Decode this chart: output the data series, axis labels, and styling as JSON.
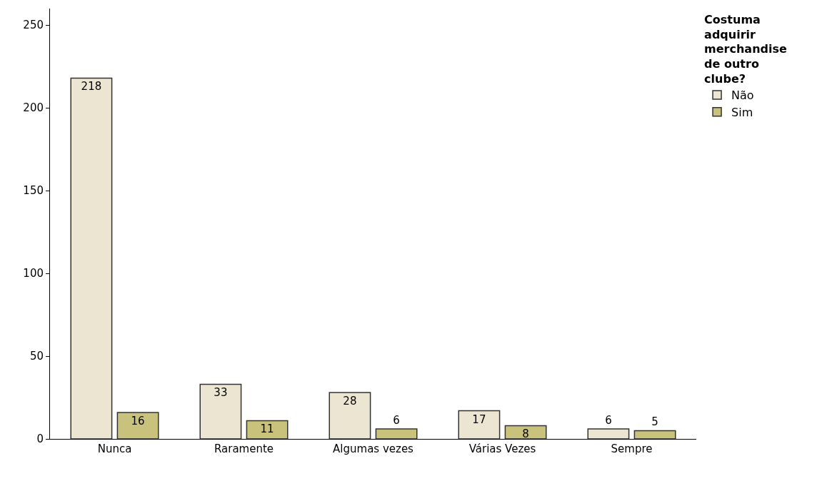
{
  "chart_data": {
    "type": "bar",
    "categories": [
      "Nunca",
      "Raramente",
      "Algumas vezes",
      "Várias Vezes",
      "Sempre"
    ],
    "series": [
      {
        "name": "Não",
        "color": "#ece5d1",
        "values": [
          218,
          33,
          28,
          17,
          6
        ]
      },
      {
        "name": "Sim",
        "color": "#c9c27c",
        "values": [
          16,
          11,
          6,
          8,
          5
        ]
      }
    ],
    "legend_title": "Costuma adquirir merchandise de outro clube?",
    "ylim": [
      0,
      260
    ],
    "yticks": [
      0,
      50,
      100,
      150,
      200,
      250
    ],
    "grid": false,
    "legend": "top right",
    "data_labels": true
  }
}
